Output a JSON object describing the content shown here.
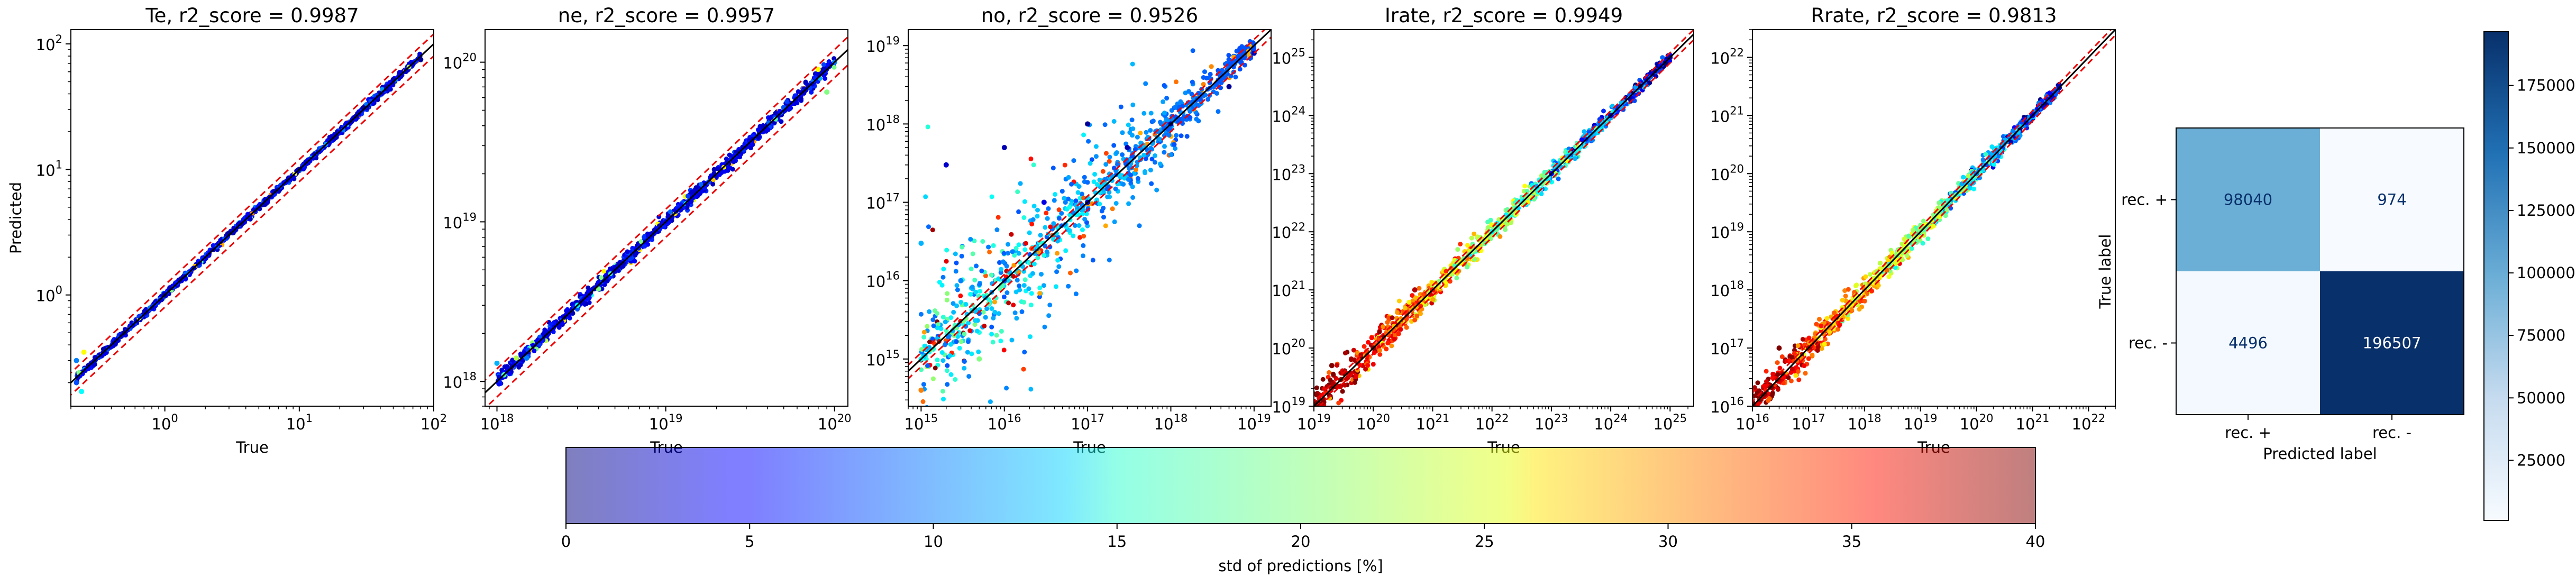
{
  "chart_data": [
    {
      "type": "scatter",
      "title": "Te, r2_score = 0.9987",
      "xlabel": "True",
      "ylabel": "Predicted",
      "scale": "log",
      "xlim": [
        0.2,
        100
      ],
      "ylim": [
        0.13,
        130
      ],
      "xticks": [
        {
          "value": 1,
          "base": "10",
          "exp": "0"
        },
        {
          "value": 10,
          "base": "10",
          "exp": "1"
        },
        {
          "value": 100,
          "base": "10",
          "exp": "2"
        }
      ],
      "yticks": [
        {
          "value": 1,
          "base": "10",
          "exp": "0"
        },
        {
          "value": 10,
          "base": "10",
          "exp": "1"
        },
        {
          "value": 100,
          "base": "10",
          "exp": "2"
        }
      ],
      "points": [
        [
          0.22,
          0.2,
          8
        ],
        [
          0.22,
          0.3,
          10
        ],
        [
          0.23,
          0.24,
          20
        ],
        [
          0.24,
          0.17,
          15
        ],
        [
          0.25,
          0.35,
          25
        ],
        [
          0.27,
          0.26,
          5
        ],
        [
          0.3,
          0.28,
          3
        ],
        [
          0.35,
          0.37,
          2
        ],
        [
          0.5,
          0.5,
          1
        ],
        [
          1,
          1,
          1
        ],
        [
          3,
          3.1,
          1
        ],
        [
          10,
          10,
          1
        ],
        [
          30,
          31,
          1
        ],
        [
          50,
          52,
          2
        ],
        [
          70,
          69,
          3
        ],
        [
          80,
          75,
          1
        ]
      ],
      "ref_lines": [
        "y = x",
        "±20%"
      ]
    },
    {
      "type": "scatter",
      "title": "ne, r2_score = 0.9957",
      "xlabel": "True",
      "ylabel": "",
      "scale": "log",
      "xlim": [
        8.5e+17,
        1.2e+20
      ],
      "ylim": [
        7e+17,
        1.6e+20
      ],
      "xticks": [
        {
          "value": 1e+18,
          "base": "10",
          "exp": "18"
        },
        {
          "value": 1e+19,
          "base": "10",
          "exp": "19"
        },
        {
          "value": 1e+20,
          "base": "10",
          "exp": "20"
        }
      ],
      "yticks": [
        {
          "value": 1e+18,
          "base": "10",
          "exp": "18"
        },
        {
          "value": 1e+19,
          "base": "10",
          "exp": "19"
        },
        {
          "value": 1e+20,
          "base": "10",
          "exp": "20"
        }
      ],
      "points": [
        [
          1e+18,
          1.3e+18,
          12
        ],
        [
          1.1e+18,
          1.1e+18,
          18
        ],
        [
          1.3e+18,
          1.4e+18,
          22
        ],
        [
          1.5e+18,
          1.4e+18,
          10
        ],
        [
          3e+18,
          3e+18,
          15
        ],
        [
          4e+18,
          3.8e+18,
          20
        ],
        [
          1e+19,
          1e+19,
          4
        ],
        [
          5e+19,
          5.2e+19,
          8
        ],
        [
          8e+19,
          9e+19,
          25
        ],
        [
          9e+19,
          6.5e+19,
          20
        ],
        [
          1e+20,
          1e+20,
          10
        ]
      ],
      "ref_lines": [
        "y = x",
        "±20%"
      ]
    },
    {
      "type": "scatter",
      "title": "no, r2_score = 0.9526",
      "xlabel": "True",
      "ylabel": "",
      "scale": "log",
      "xlim": [
        700000000000000.0,
        1.6e+19
      ],
      "ylim": [
        250000000000000.0,
        1.6e+19
      ],
      "xticks": [
        {
          "value": 1000000000000000.0,
          "base": "10",
          "exp": "15"
        },
        {
          "value": 1e+16,
          "base": "10",
          "exp": "16"
        },
        {
          "value": 1e+17,
          "base": "10",
          "exp": "17"
        },
        {
          "value": 1e+18,
          "base": "10",
          "exp": "18"
        },
        {
          "value": 1e+19,
          "base": "10",
          "exp": "19"
        }
      ],
      "yticks": [
        {
          "value": 1000000000000000.0,
          "base": "10",
          "exp": "15"
        },
        {
          "value": 1e+16,
          "base": "10",
          "exp": "16"
        },
        {
          "value": 1e+17,
          "base": "10",
          "exp": "17"
        },
        {
          "value": 1e+18,
          "base": "10",
          "exp": "18"
        },
        {
          "value": 1e+19,
          "base": "10",
          "exp": "19"
        }
      ],
      "points": [
        [
          1000000000000000.0,
          1000000000000000.0,
          15
        ],
        [
          1000000000000000.0,
          3e+16,
          12
        ],
        [
          2000000000000000.0,
          3e+17,
          3
        ],
        [
          1000000000000000.0,
          400000000000000.0,
          30
        ],
        [
          3000000000000000.0,
          1e+16,
          10
        ],
        [
          5000000000000000.0,
          1000000000000000.0,
          20
        ],
        [
          1e+16,
          5e+17,
          2
        ],
        [
          1e+16,
          1e+16,
          8
        ],
        [
          3e+16,
          1e+17,
          4
        ],
        [
          1e+17,
          1e+17,
          3
        ],
        [
          1e+17,
          1e+18,
          1
        ],
        [
          3e+17,
          5e+17,
          2
        ],
        [
          1e+18,
          1e+18,
          1
        ],
        [
          5e+18,
          3e+18,
          1
        ],
        [
          1e+19,
          8e+18,
          2
        ]
      ],
      "ref_lines": [
        "y = x",
        "±20%"
      ]
    },
    {
      "type": "scatter",
      "title": "Irate, r2_score = 0.9949",
      "xlabel": "True",
      "ylabel": "",
      "scale": "log",
      "xlim": [
        1e+19,
        2.5e+25
      ],
      "ylim": [
        1e+19,
        3e+25
      ],
      "xticks": [
        {
          "value": 1e+19,
          "base": "10",
          "exp": "19"
        },
        {
          "value": 1e+20,
          "base": "10",
          "exp": "20"
        },
        {
          "value": 1e+21,
          "base": "10",
          "exp": "21"
        },
        {
          "value": 1e+22,
          "base": "10",
          "exp": "22"
        },
        {
          "value": 1e+23,
          "base": "10",
          "exp": "23"
        },
        {
          "value": 1e+24,
          "base": "10",
          "exp": "24"
        },
        {
          "value": 1e+25,
          "base": "10",
          "exp": "25"
        }
      ],
      "yticks": [
        {
          "value": 1e+19,
          "base": "10",
          "exp": "19"
        },
        {
          "value": 1e+20,
          "base": "10",
          "exp": "20"
        },
        {
          "value": 1e+21,
          "base": "10",
          "exp": "21"
        },
        {
          "value": 1e+22,
          "base": "10",
          "exp": "22"
        },
        {
          "value": 1e+23,
          "base": "10",
          "exp": "23"
        },
        {
          "value": 1e+24,
          "base": "10",
          "exp": "24"
        },
        {
          "value": 1e+25,
          "base": "10",
          "exp": "25"
        }
      ],
      "points": [
        [
          1e+19,
          1e+19,
          40
        ],
        [
          2e+19,
          5e+19,
          40
        ],
        [
          1e+20,
          1e+20,
          40
        ],
        [
          5e+20,
          1e+21,
          38
        ],
        [
          1e+21,
          1e+21,
          35
        ],
        [
          3e+21,
          3e+21,
          25
        ],
        [
          1e+22,
          1e+22,
          15
        ],
        [
          1e+23,
          1e+23,
          5
        ],
        [
          1e+24,
          1e+24,
          3
        ],
        [
          1e+25,
          1e+25,
          2
        ]
      ],
      "ref_lines": [
        "y = x",
        "±20%"
      ]
    },
    {
      "type": "scatter",
      "title": "Rrate, r2_score = 0.9813",
      "xlabel": "True",
      "ylabel": "",
      "scale": "log",
      "xlim": [
        1e+16,
        3e+22
      ],
      "ylim": [
        1e+16,
        3e+22
      ],
      "xticks": [
        {
          "value": 1e+16,
          "base": "10",
          "exp": "16"
        },
        {
          "value": 1e+17,
          "base": "10",
          "exp": "17"
        },
        {
          "value": 1e+18,
          "base": "10",
          "exp": "18"
        },
        {
          "value": 1e+19,
          "base": "10",
          "exp": "19"
        },
        {
          "value": 1e+20,
          "base": "10",
          "exp": "20"
        },
        {
          "value": 1e+21,
          "base": "10",
          "exp": "21"
        },
        {
          "value": 1e+22,
          "base": "10",
          "exp": "22"
        }
      ],
      "yticks": [
        {
          "value": 1e+16,
          "base": "10",
          "exp": "16"
        },
        {
          "value": 1e+17,
          "base": "10",
          "exp": "17"
        },
        {
          "value": 1e+18,
          "base": "10",
          "exp": "18"
        },
        {
          "value": 1e+19,
          "base": "10",
          "exp": "19"
        },
        {
          "value": 1e+20,
          "base": "10",
          "exp": "20"
        },
        {
          "value": 1e+21,
          "base": "10",
          "exp": "21"
        },
        {
          "value": 1e+22,
          "base": "10",
          "exp": "22"
        }
      ],
      "points": [
        [
          1e+16,
          1e+16,
          40
        ],
        [
          3e+16,
          1e+17,
          40
        ],
        [
          1e+17,
          1e+17,
          38
        ],
        [
          1e+18,
          1e+18,
          30
        ],
        [
          1e+19,
          1e+19,
          20
        ],
        [
          1e+20,
          1e+20,
          10
        ],
        [
          1e+21,
          1e+21,
          5
        ],
        [
          3e+21,
          3e+21,
          2
        ]
      ],
      "ref_lines": [
        "y = x",
        "±20%"
      ]
    },
    {
      "type": "heatmap",
      "ylabel": "True label",
      "xlabel": "Predicted label",
      "x_categories": [
        "rec. +",
        "rec. -"
      ],
      "y_categories": [
        "rec. +",
        "rec. -"
      ],
      "matrix": [
        [
          98040,
          974
        ],
        [
          4496,
          196507
        ]
      ],
      "colormap": "Blues",
      "colorbar": {
        "min": 974,
        "max": 196507,
        "ticks": [
          "25000",
          "50000",
          "75000",
          "100000",
          "125000",
          "150000",
          "175000"
        ]
      }
    },
    {
      "type": "colorbar",
      "label": "std of predictions [%]",
      "colormap": "jet",
      "alpha": 0.5,
      "range": [
        0,
        40
      ],
      "ticks": [
        "0",
        "5",
        "10",
        "15",
        "20",
        "25",
        "30",
        "35",
        "40"
      ]
    }
  ]
}
